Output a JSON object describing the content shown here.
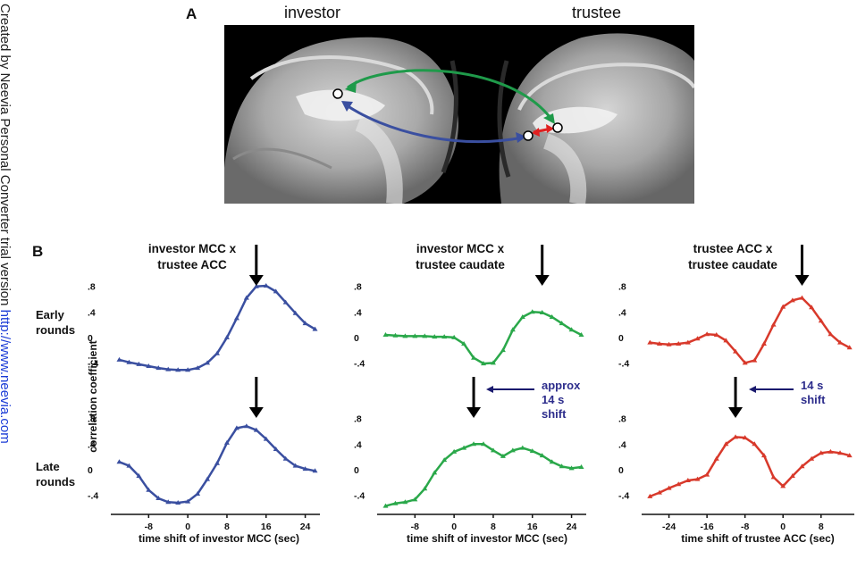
{
  "watermark": {
    "text": "Created by Neevia Personal Converter trial version ",
    "link": "http://www.neevia.com"
  },
  "panel_a": {
    "letter": "A",
    "left_label": "investor",
    "right_label": "trustee",
    "colors": {
      "green": "#1f9a4a",
      "blue": "#3a4fa0",
      "red": "#e02020"
    }
  },
  "panel_b": {
    "letter": "B",
    "row_labels": {
      "early": "Early\nrounds",
      "late": "Late\nrounds"
    },
    "ylabel": "correlation coefficient",
    "columns": [
      {
        "title": "investor MCC x\ntrustee ACC",
        "xlabel": "time shift of investor MCC (sec)",
        "color": "#3a4fa0"
      },
      {
        "title": "investor MCC x\ntrustee caudate",
        "xlabel": "time shift of investor MCC (sec)",
        "color": "#2aa84a"
      },
      {
        "title": "trustee ACC x\ntrustee caudate",
        "xlabel": "time shift of trustee ACC (sec)",
        "color": "#d8392b"
      }
    ],
    "shift_notes": [
      {
        "text": "approx\n14 s\nshift"
      },
      {
        "text": "14 s\nshift"
      }
    ]
  },
  "chart_data": [
    {
      "type": "line",
      "panel": "investor MCC x trustee ACC — early rounds",
      "x": [
        -14,
        -12,
        -10,
        -8,
        -6,
        -4,
        -2,
        0,
        2,
        4,
        6,
        8,
        10,
        12,
        14,
        16,
        18,
        20,
        22,
        24,
        26
      ],
      "values": [
        -0.35,
        -0.39,
        -0.42,
        -0.45,
        -0.48,
        -0.5,
        -0.51,
        -0.51,
        -0.48,
        -0.4,
        -0.25,
        0.0,
        0.3,
        0.62,
        0.8,
        0.81,
        0.72,
        0.55,
        0.38,
        0.22,
        0.13
      ],
      "ylim": [
        -0.45,
        0.95
      ],
      "xlim": [
        -15,
        27
      ],
      "xticks": [
        -8,
        0,
        8,
        16,
        24
      ],
      "yticks": [
        -0.4,
        0,
        0.4,
        0.8
      ],
      "ytick_labels": [
        "-.4",
        "0",
        ".4",
        ".8"
      ]
    },
    {
      "type": "line",
      "panel": "investor MCC x trustee caudate — early rounds",
      "x": [
        -14,
        -12,
        -10,
        -8,
        -6,
        -4,
        -2,
        0,
        2,
        4,
        6,
        8,
        10,
        12,
        14,
        16,
        18,
        20,
        22,
        24,
        26
      ],
      "values": [
        0.04,
        0.03,
        0.02,
        0.02,
        0.02,
        0.01,
        0.01,
        0.0,
        -0.1,
        -0.32,
        -0.41,
        -0.4,
        -0.2,
        0.12,
        0.32,
        0.4,
        0.39,
        0.32,
        0.22,
        0.12,
        0.04
      ],
      "ylim": [
        -0.45,
        0.95
      ],
      "xlim": [
        -15,
        27
      ],
      "xticks": [
        -8,
        0,
        8,
        16,
        24
      ],
      "yticks": [
        -0.4,
        0,
        0.4,
        0.8
      ],
      "ytick_labels": [
        "-.4",
        "0",
        ".4",
        ".8"
      ]
    },
    {
      "type": "line",
      "panel": "trustee ACC x trustee caudate — early rounds",
      "x": [
        -28,
        -26,
        -24,
        -22,
        -20,
        -18,
        -16,
        -14,
        -12,
        -10,
        -8,
        -6,
        -4,
        -2,
        0,
        2,
        4,
        6,
        8,
        10,
        12,
        14
      ],
      "values": [
        -0.08,
        -0.1,
        -0.11,
        -0.1,
        -0.08,
        -0.02,
        0.05,
        0.04,
        -0.05,
        -0.22,
        -0.4,
        -0.36,
        -0.1,
        0.2,
        0.48,
        0.58,
        0.62,
        0.47,
        0.26,
        0.05,
        -0.08,
        -0.16
      ],
      "ylim": [
        -0.45,
        0.95
      ],
      "xlim": [
        -29,
        15
      ],
      "xticks": [
        -24,
        -16,
        -8,
        0,
        8
      ],
      "yticks": [
        -0.4,
        0,
        0.4,
        0.8
      ],
      "ytick_labels": [
        "-.4",
        "0",
        ".4",
        ".8"
      ]
    },
    {
      "type": "line",
      "panel": "investor MCC x trustee ACC — late rounds",
      "x": [
        -14,
        -12,
        -10,
        -8,
        -6,
        -4,
        -2,
        0,
        2,
        4,
        6,
        8,
        10,
        12,
        14,
        16,
        18,
        20,
        22,
        24,
        26
      ],
      "values": [
        0.12,
        0.06,
        -0.1,
        -0.32,
        -0.45,
        -0.51,
        -0.52,
        -0.5,
        -0.38,
        -0.15,
        0.1,
        0.42,
        0.65,
        0.68,
        0.62,
        0.48,
        0.32,
        0.17,
        0.06,
        0.01,
        -0.02
      ],
      "ylim": [
        -0.45,
        0.95
      ],
      "xlim": [
        -15,
        27
      ],
      "xticks": [
        -8,
        0,
        8,
        16,
        24
      ],
      "yticks": [
        -0.4,
        0,
        0.4,
        0.8
      ],
      "ytick_labels": [
        "-.4",
        "0",
        ".4",
        ".8"
      ]
    },
    {
      "type": "line",
      "panel": "investor MCC x trustee caudate — late rounds",
      "x": [
        -14,
        -12,
        -10,
        -8,
        -6,
        -4,
        -2,
        0,
        2,
        4,
        6,
        8,
        10,
        12,
        14,
        16,
        18,
        20,
        22,
        24,
        26
      ],
      "values": [
        -0.57,
        -0.53,
        -0.51,
        -0.47,
        -0.3,
        -0.05,
        0.15,
        0.28,
        0.34,
        0.4,
        0.4,
        0.3,
        0.21,
        0.3,
        0.34,
        0.29,
        0.22,
        0.12,
        0.05,
        0.02,
        0.04
      ],
      "ylim": [
        -0.45,
        0.95
      ],
      "xlim": [
        -15,
        27
      ],
      "xticks": [
        -8,
        0,
        8,
        16,
        24
      ],
      "yticks": [
        -0.4,
        0,
        0.4,
        0.8
      ],
      "ytick_labels": [
        "-.4",
        "0",
        ".4",
        ".8"
      ]
    },
    {
      "type": "line",
      "panel": "trustee ACC x trustee caudate — late rounds",
      "x": [
        -28,
        -26,
        -24,
        -22,
        -20,
        -18,
        -16,
        -14,
        -12,
        -10,
        -8,
        -6,
        -4,
        -2,
        0,
        2,
        4,
        6,
        8,
        10,
        12,
        14
      ],
      "values": [
        -0.42,
        -0.36,
        -0.29,
        -0.23,
        -0.17,
        -0.15,
        -0.08,
        0.17,
        0.4,
        0.51,
        0.5,
        0.4,
        0.22,
        -0.12,
        -0.26,
        -0.1,
        0.05,
        0.17,
        0.26,
        0.28,
        0.26,
        0.22
      ],
      "ylim": [
        -0.45,
        0.95
      ],
      "xlim": [
        -29,
        15
      ],
      "xticks": [
        -24,
        -16,
        -8,
        0,
        8
      ],
      "yticks": [
        -0.4,
        0,
        0.4,
        0.8
      ],
      "ytick_labels": [
        "-.4",
        "0",
        ".4",
        ".8"
      ]
    }
  ],
  "arrow_positions": [
    {
      "panel": 0,
      "x": 14
    },
    {
      "panel": 1,
      "x": 18
    },
    {
      "panel": 2,
      "x": 4
    },
    {
      "panel": 3,
      "x": 14
    },
    {
      "panel": 4,
      "x": 4
    },
    {
      "panel": 5,
      "x": -10
    }
  ]
}
